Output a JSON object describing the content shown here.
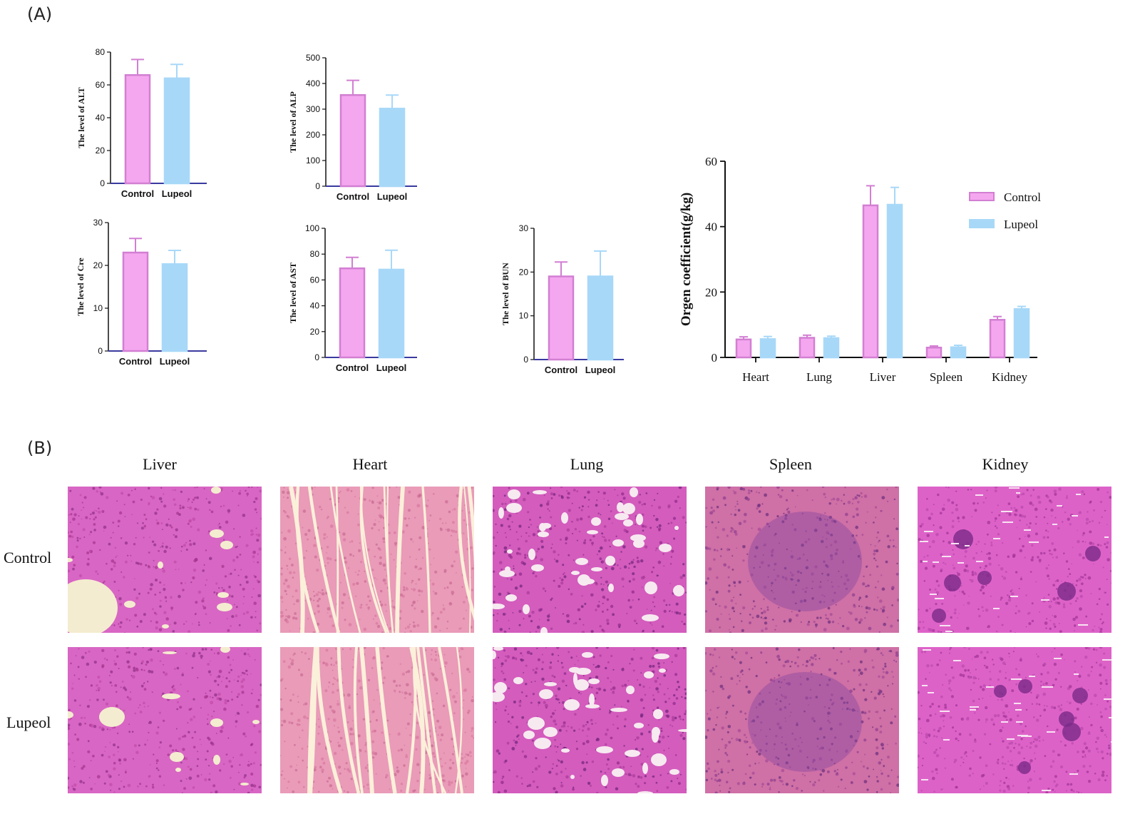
{
  "panels": {
    "a": "(A)",
    "b": "(B)"
  },
  "colors": {
    "control_fill": "#f4a7ef",
    "control_stroke": "#d27fd2",
    "lupeol_fill": "#a8d8f8",
    "lupeol_stroke": "#a8d8f8",
    "axis": "#111111",
    "baseline": "#3a3aa0"
  },
  "chart_data": [
    {
      "type": "bar",
      "ylabel": "The level of  ALT",
      "categories": [
        "Control",
        "Lupeol"
      ],
      "values": [
        66,
        64
      ],
      "errors": [
        9.5,
        8.5
      ],
      "ylim": [
        0,
        80
      ],
      "yticks": [
        "0",
        "20",
        "40",
        "60",
        "80"
      ]
    },
    {
      "type": "bar",
      "ylabel": "The level of ALP",
      "categories": [
        "Control",
        "Lupeol"
      ],
      "values": [
        355,
        302
      ],
      "errors": [
        57,
        53
      ],
      "ylim": [
        0,
        500
      ],
      "yticks": [
        "0",
        "100",
        "200",
        "300",
        "400",
        "500"
      ]
    },
    {
      "type": "bar",
      "ylabel": "The level of Cre",
      "categories": [
        "Control",
        "Lupeol"
      ],
      "values": [
        23,
        20.3
      ],
      "errors": [
        3.3,
        3.2
      ],
      "ylim": [
        0,
        30
      ],
      "yticks": [
        "0",
        "10",
        "20",
        "30"
      ]
    },
    {
      "type": "bar",
      "ylabel": "The level of AST",
      "categories": [
        "Control",
        "Lupeol"
      ],
      "values": [
        69,
        68
      ],
      "errors": [
        8.5,
        15
      ],
      "ylim": [
        0,
        100
      ],
      "yticks": [
        "0",
        "20",
        "40",
        "60",
        "80",
        "100"
      ]
    },
    {
      "type": "bar",
      "ylabel": "The level of BUN",
      "categories": [
        "Control",
        "Lupeol"
      ],
      "values": [
        19,
        19
      ],
      "errors": [
        3.3,
        5.8
      ],
      "ylim": [
        0,
        30
      ],
      "yticks": [
        "0",
        "10",
        "20",
        "30"
      ]
    },
    {
      "type": "bar",
      "ylabel": "Orgen coefficient(g/kg)",
      "categories": [
        "Heart",
        "Lung",
        "Liver",
        "Spleen",
        "Kidney"
      ],
      "series": [
        {
          "name": "Control",
          "values": [
            5.5,
            6.0,
            46.5,
            3.0,
            11.5
          ],
          "errors": [
            0.8,
            0.8,
            6.0,
            0.5,
            1.0
          ]
        },
        {
          "name": "Lupeol",
          "values": [
            5.6,
            5.9,
            46.7,
            3.1,
            14.8
          ],
          "errors": [
            0.8,
            0.6,
            5.3,
            0.6,
            0.8
          ]
        }
      ],
      "ylim": [
        0,
        60
      ],
      "yticks": [
        "0",
        "20",
        "40",
        "60"
      ],
      "legend": "top-right"
    }
  ],
  "histology": {
    "columns": [
      "Liver",
      "Heart",
      "Lung",
      "Spleen",
      "Kidney"
    ],
    "rows": [
      "Control",
      "Lupeol"
    ]
  }
}
